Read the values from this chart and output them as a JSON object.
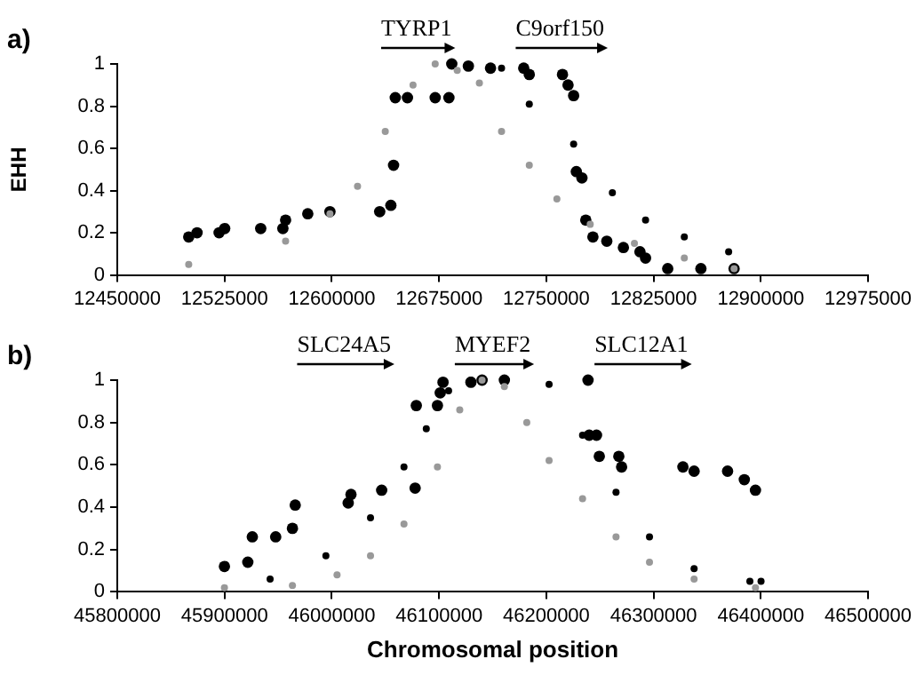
{
  "chart_data": [
    {
      "type": "scatter",
      "title": "a)",
      "ylabel": "EHH",
      "xlim": [
        12450000,
        12975000
      ],
      "xticks": [
        12450000,
        12525000,
        12600000,
        12675000,
        12750000,
        12825000,
        12900000,
        12975000
      ],
      "ylim": [
        0,
        1
      ],
      "yticks": [
        0,
        0.2,
        0.4,
        0.6,
        0.8,
        1
      ],
      "grid": false,
      "legend": false,
      "marker": "circle",
      "annotations": [
        "TYRP1",
        "C9orf150"
      ],
      "series": [
        {
          "color": "#000000",
          "x": [
            12499950,
            12505800,
            12521200,
            12525100,
            12550300,
            12565800,
            12567700,
            12583200,
            12598700,
            12633500,
            12641300,
            12643200,
            12644400,
            12652900,
            12672300,
            12681900,
            12683900,
            12695500,
            12711000,
            12734200,
            12738100,
            12761300,
            12765200,
            12769100,
            12771000,
            12774900,
            12777600,
            12782600,
            12792300,
            12803900,
            12815500,
            12819400,
            12834900,
            12858100,
            12881300
          ],
          "values": [
            0.18,
            0.2,
            0.2,
            0.22,
            0.22,
            0.22,
            0.26,
            0.29,
            0.3,
            0.3,
            0.33,
            0.52,
            0.84,
            0.84,
            0.84,
            0.84,
            1,
            0.99,
            0.98,
            0.98,
            0.95,
            0.95,
            0.9,
            0.85,
            0.49,
            0.46,
            0.26,
            0.18,
            0.16,
            0.13,
            0.11,
            0.08,
            0.03,
            0.03,
            0.03
          ]
        },
        {
          "color": "#999999",
          "x": [
            12499950,
            12567700,
            12598700,
            12618000,
            12637400,
            12656800,
            12672300,
            12687700,
            12703200,
            12718700,
            12738100,
            12757400,
            12780700,
            12811600,
            12846500,
            12881300
          ],
          "values": [
            0.05,
            0.16,
            0.29,
            0.42,
            0.68,
            0.9,
            1,
            0.97,
            0.91,
            0.68,
            0.52,
            0.36,
            0.24,
            0.15,
            0.08,
            0.03
          ]
        },
        {
          "color": "#000000",
          "x": [
            12718700,
            12738100,
            12769100,
            12796200,
            12819400,
            12846500,
            12877500
          ],
          "values": [
            0.98,
            0.81,
            0.62,
            0.39,
            0.26,
            0.18,
            0.11
          ]
        }
      ]
    },
    {
      "type": "scatter",
      "title": "b)",
      "xlabel": "Chromosomal position",
      "xlim": [
        45800000,
        46500000
      ],
      "xticks": [
        45800000,
        45900000,
        46000000,
        46100000,
        46200000,
        46300000,
        46400000,
        46500000
      ],
      "ylim": [
        0,
        1
      ],
      "yticks": [
        0,
        0.2,
        0.4,
        0.6,
        0.8,
        1
      ],
      "grid": false,
      "legend": false,
      "marker": "circle",
      "annotations": [
        "SLC24A5",
        "MYEF2",
        "SLC12A1"
      ],
      "series": [
        {
          "color": "#000000",
          "x": [
            45899900,
            45921700,
            45925900,
            45947700,
            45963300,
            45965900,
            46015300,
            46017900,
            46046500,
            46077700,
            46078800,
            46098500,
            46101100,
            46103700,
            46129700,
            46140100,
            46160900,
            46238900,
            46240000,
            46246800,
            46249400,
            46267600,
            46270200,
            46327400,
            46337800,
            46369000,
            46384600,
            46395000
          ],
          "values": [
            0.12,
            0.14,
            0.26,
            0.26,
            0.3,
            0.41,
            0.42,
            0.46,
            0.48,
            0.49,
            0.88,
            0.88,
            0.94,
            0.99,
            0.99,
            1,
            1,
            1,
            0.74,
            0.74,
            0.64,
            0.64,
            0.59,
            0.59,
            0.57,
            0.57,
            0.53,
            0.48
          ]
        },
        {
          "color": "#999999",
          "x": [
            45899900,
            45963300,
            46004900,
            46036100,
            46067300,
            46098500,
            46119300,
            46140100,
            46160900,
            46181800,
            46202600,
            46233800,
            46265000,
            46296200,
            46337800,
            46395000
          ],
          "values": [
            0.02,
            0.03,
            0.08,
            0.17,
            0.32,
            0.59,
            0.86,
            1,
            0.97,
            0.8,
            0.62,
            0.44,
            0.26,
            0.14,
            0.06,
            0.02
          ]
        },
        {
          "color": "#000000",
          "x": [
            45942500,
            45994500,
            46036100,
            46067300,
            46088100,
            46108900,
            46129700,
            46202600,
            46233800,
            46265000,
            46296200,
            46337800,
            46389800,
            46400200
          ],
          "values": [
            0.06,
            0.17,
            0.35,
            0.59,
            0.77,
            0.95,
            1,
            0.98,
            0.74,
            0.47,
            0.26,
            0.11,
            0.05,
            0.05
          ]
        }
      ]
    }
  ]
}
